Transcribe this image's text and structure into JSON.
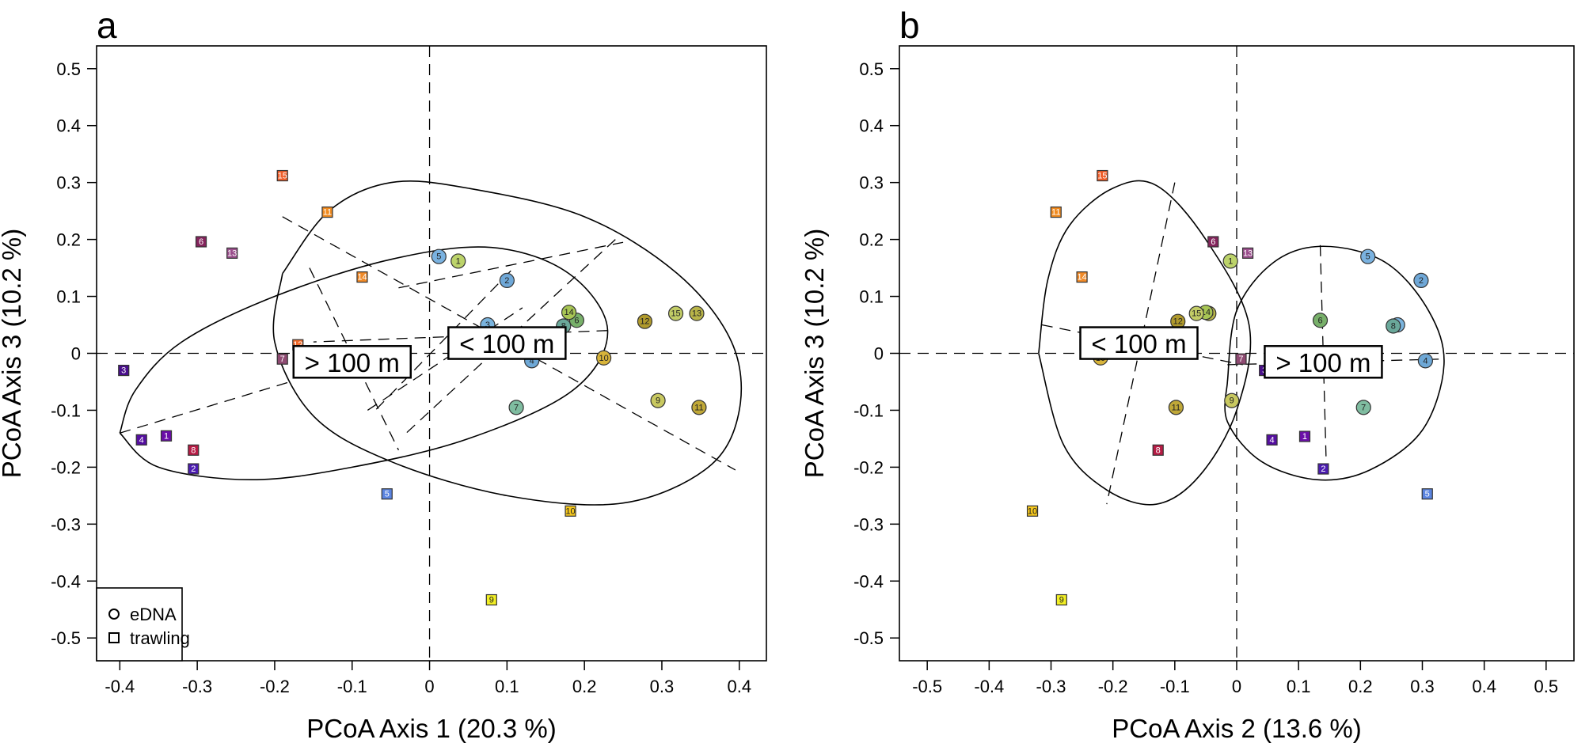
{
  "colors": {
    "s1": "#6a0ea8",
    "s2": "#4b1cb0",
    "s3": "#4a0f8c",
    "s4": "#550fa0",
    "s5": "#5b84e0",
    "s6": "#84245c",
    "s7": "#8f4a72",
    "s8": "#b71c45",
    "s9": "#f2ef24",
    "s10": "#f6c81d",
    "s11": "#ef8a1f",
    "s12": "#f06a2a",
    "s13": "#9a4e8c",
    "s14": "#f08a28",
    "s15": "#ef5e2a",
    "e1": "#bcd36a",
    "e2": "#6fa8d8",
    "e3": "#7ab4de",
    "e4": "#6ea8d6",
    "e5": "#7ab2e0",
    "e6": "#78b06a",
    "e7": "#7fbca0",
    "e8": "#6aa89a",
    "e9": "#c8c860",
    "e10": "#d8b43a",
    "e11": "#c0a838",
    "e12": "#b09a2c",
    "e13": "#b8b448",
    "e14": "#a8c654",
    "e15": "#c2cc66"
  },
  "legend": {
    "items": [
      {
        "shape": "circle",
        "label": "eDNA"
      },
      {
        "shape": "square",
        "label": "trawling"
      }
    ]
  },
  "chart_data": [
    {
      "type": "scatter",
      "panel": "a",
      "xlabel": "PCoA Axis 1 (20.3 %)",
      "ylabel": "PCoA Axis 3 (10.2 %)",
      "xlim": [
        -0.43,
        0.435
      ],
      "ylim": [
        -0.54,
        0.54
      ],
      "xticks": [
        -0.4,
        -0.3,
        -0.2,
        -0.1,
        0,
        0.1,
        0.2,
        0.3,
        0.4
      ],
      "xtick_labels": [
        "-0.4",
        "-0.3",
        "-0.2",
        "-0.1",
        "0",
        "0.1",
        "0.2",
        "0.3",
        "0.4"
      ],
      "yticks": [
        0.5,
        0.4,
        0.3,
        0.2,
        0.1,
        0,
        -0.1,
        -0.2,
        -0.3,
        -0.4,
        -0.5
      ],
      "ytick_labels": [
        "0.5",
        "0.4",
        "0.3",
        "0.2",
        "0.1",
        "0",
        "-0.1",
        "-0.2",
        "-0.3",
        "-0.4",
        "-0.5"
      ],
      "has_legend": true,
      "series": [
        {
          "type": "trawling",
          "points": [
            {
              "id": "1",
              "x": -0.34,
              "y": -0.145
            },
            {
              "id": "2",
              "x": -0.305,
              "y": -0.203
            },
            {
              "id": "3",
              "x": -0.395,
              "y": -0.03
            },
            {
              "id": "4",
              "x": -0.372,
              "y": -0.152
            },
            {
              "id": "5",
              "x": -0.055,
              "y": -0.247
            },
            {
              "id": "6",
              "x": -0.295,
              "y": 0.196
            },
            {
              "id": "7",
              "x": -0.19,
              "y": -0.01
            },
            {
              "id": "8",
              "x": -0.305,
              "y": -0.17
            },
            {
              "id": "9",
              "x": 0.08,
              "y": -0.433
            },
            {
              "id": "10",
              "x": 0.182,
              "y": -0.277
            },
            {
              "id": "11",
              "x": -0.132,
              "y": 0.248
            },
            {
              "id": "12",
              "x": -0.17,
              "y": 0.015
            },
            {
              "id": "13",
              "x": -0.255,
              "y": 0.176
            },
            {
              "id": "14",
              "x": -0.087,
              "y": 0.134
            },
            {
              "id": "15",
              "x": -0.19,
              "y": 0.312
            }
          ]
        },
        {
          "type": "eDNA",
          "points": [
            {
              "id": "1",
              "x": 0.037,
              "y": 0.162
            },
            {
              "id": "2",
              "x": 0.1,
              "y": 0.128
            },
            {
              "id": "3",
              "x": 0.075,
              "y": 0.05
            },
            {
              "id": "4",
              "x": 0.132,
              "y": -0.013
            },
            {
              "id": "5",
              "x": 0.012,
              "y": 0.17
            },
            {
              "id": "6",
              "x": 0.19,
              "y": 0.058
            },
            {
              "id": "7",
              "x": 0.112,
              "y": -0.095
            },
            {
              "id": "8",
              "x": 0.173,
              "y": 0.048
            },
            {
              "id": "9",
              "x": 0.295,
              "y": -0.083
            },
            {
              "id": "10",
              "x": 0.225,
              "y": -0.008
            },
            {
              "id": "11",
              "x": 0.348,
              "y": -0.095
            },
            {
              "id": "12",
              "x": 0.278,
              "y": 0.056
            },
            {
              "id": "13",
              "x": 0.345,
              "y": 0.07
            },
            {
              "id": "14",
              "x": 0.18,
              "y": 0.072
            },
            {
              "id": "15",
              "x": 0.318,
              "y": 0.07
            }
          ]
        }
      ],
      "groups": [
        {
          "label": "> 100 m",
          "label_x": -0.1,
          "label_y": -0.015,
          "center": [
            -0.112,
            -0.011
          ],
          "ellipse_path": [
            [
              -0.4,
              -0.14
            ],
            [
              -0.38,
              -0.065
            ],
            [
              -0.32,
              0.02
            ],
            [
              -0.2,
              0.1
            ],
            [
              -0.05,
              0.165
            ],
            [
              0.08,
              0.186
            ],
            [
              0.18,
              0.14
            ],
            [
              0.23,
              0.04
            ],
            [
              0.185,
              -0.065
            ],
            [
              0.05,
              -0.15
            ],
            [
              -0.1,
              -0.2
            ],
            [
              -0.23,
              -0.222
            ],
            [
              -0.35,
              -0.2
            ],
            [
              -0.4,
              -0.14
            ]
          ],
          "spokes": [
            [
              [
                -0.4,
                -0.14
              ],
              [
                -0.18,
                -0.05
              ]
            ],
            [
              [
                0.23,
                0.04
              ],
              [
                -0.15,
                0.02
              ]
            ],
            [
              [
                -0.155,
                0.15
              ],
              [
                -0.04,
                -0.17
              ]
            ],
            [
              [
                0.105,
                0.145
              ],
              [
                -0.07,
                -0.1
              ]
            ]
          ]
        },
        {
          "label": "< 100 m",
          "label_x": 0.1,
          "label_y": 0.018,
          "center": [
            0.08,
            0.02
          ],
          "ellipse_path": [
            [
              -0.19,
              0.14
            ],
            [
              -0.13,
              0.25
            ],
            [
              -0.05,
              0.3
            ],
            [
              0.05,
              0.29
            ],
            [
              0.2,
              0.24
            ],
            [
              0.32,
              0.14
            ],
            [
              0.39,
              0.02
            ],
            [
              0.4,
              -0.1
            ],
            [
              0.36,
              -0.2
            ],
            [
              0.25,
              -0.263
            ],
            [
              0.1,
              -0.25
            ],
            [
              -0.05,
              -0.19
            ],
            [
              -0.15,
              -0.11
            ],
            [
              -0.2,
              0.02
            ],
            [
              -0.19,
              0.14
            ]
          ],
          "spokes": [
            [
              [
                -0.19,
                0.24
              ],
              [
                0.395,
                -0.205
              ]
            ],
            [
              [
                0.24,
                0.2
              ],
              [
                -0.03,
                -0.14
              ]
            ],
            [
              [
                -0.04,
                0.115
              ],
              [
                0.25,
                0.195
              ]
            ],
            [
              [
                -0.08,
                -0.1
              ],
              [
                0.12,
                0.08
              ]
            ]
          ]
        }
      ]
    },
    {
      "type": "scatter",
      "panel": "b",
      "xlabel": "PCoA Axis 2 (13.6 %)",
      "ylabel": "PCoA Axis 3 (10.2 %)",
      "xlim": [
        -0.545,
        0.545
      ],
      "ylim": [
        -0.54,
        0.54
      ],
      "xticks": [
        -0.5,
        -0.4,
        -0.3,
        -0.2,
        -0.1,
        0,
        0.1,
        0.2,
        0.3,
        0.4,
        0.5
      ],
      "xtick_labels": [
        "-0.5",
        "-0.4",
        "-0.3",
        "-0.2",
        "-0.1",
        "0",
        "0.1",
        "0.2",
        "0.3",
        "0.4",
        "0.5"
      ],
      "yticks": [
        0.5,
        0.4,
        0.3,
        0.2,
        0.1,
        0,
        -0.1,
        -0.2,
        -0.3,
        -0.4,
        -0.5
      ],
      "ytick_labels": [
        "0.5",
        "0.4",
        "0.3",
        "0.2",
        "0.1",
        "0",
        "-0.1",
        "-0.2",
        "-0.3",
        "-0.4",
        "-0.5"
      ],
      "has_legend": false,
      "series": [
        {
          "type": "trawling",
          "points": [
            {
              "id": "1",
              "x": 0.11,
              "y": -0.146
            },
            {
              "id": "2",
              "x": 0.14,
              "y": -0.203
            },
            {
              "id": "3",
              "x": 0.045,
              "y": -0.03
            },
            {
              "id": "4",
              "x": 0.057,
              "y": -0.152
            },
            {
              "id": "5",
              "x": 0.308,
              "y": -0.247
            },
            {
              "id": "6",
              "x": -0.038,
              "y": 0.196
            },
            {
              "id": "7",
              "x": 0.007,
              "y": -0.01
            },
            {
              "id": "8",
              "x": -0.127,
              "y": -0.17
            },
            {
              "id": "9",
              "x": -0.283,
              "y": -0.433
            },
            {
              "id": "10",
              "x": -0.33,
              "y": -0.277
            },
            {
              "id": "11",
              "x": -0.292,
              "y": 0.248
            },
            {
              "id": "12",
              "x": -0.245,
              "y": 0.015
            },
            {
              "id": "13",
              "x": 0.018,
              "y": 0.176
            },
            {
              "id": "14",
              "x": -0.25,
              "y": 0.134
            },
            {
              "id": "15",
              "x": -0.217,
              "y": 0.312
            }
          ]
        },
        {
          "type": "eDNA",
          "points": [
            {
              "id": "1",
              "x": -0.01,
              "y": 0.162
            },
            {
              "id": "2",
              "x": 0.298,
              "y": 0.128
            },
            {
              "id": "3",
              "x": 0.26,
              "y": 0.05
            },
            {
              "id": "4",
              "x": 0.305,
              "y": -0.013
            },
            {
              "id": "5",
              "x": 0.212,
              "y": 0.17
            },
            {
              "id": "6",
              "x": 0.135,
              "y": 0.058
            },
            {
              "id": "7",
              "x": 0.205,
              "y": -0.095
            },
            {
              "id": "8",
              "x": 0.253,
              "y": 0.048
            },
            {
              "id": "9",
              "x": -0.008,
              "y": -0.083
            },
            {
              "id": "10",
              "x": -0.22,
              "y": -0.008
            },
            {
              "id": "11",
              "x": -0.098,
              "y": -0.095
            },
            {
              "id": "12",
              "x": -0.095,
              "y": 0.056
            },
            {
              "id": "13",
              "x": -0.045,
              "y": 0.07
            },
            {
              "id": "14",
              "x": -0.05,
              "y": 0.072
            },
            {
              "id": "15",
              "x": -0.065,
              "y": 0.07
            }
          ]
        }
      ],
      "groups": [
        {
          "label": "< 100 m",
          "label_x": -0.158,
          "label_y": 0.018,
          "center": [
            -0.15,
            0.01
          ],
          "ellipse_path": [
            [
              -0.32,
              0.0
            ],
            [
              -0.305,
              0.13
            ],
            [
              -0.27,
              0.225
            ],
            [
              -0.2,
              0.29
            ],
            [
              -0.13,
              0.295
            ],
            [
              -0.05,
              0.2
            ],
            [
              0.02,
              0.05
            ],
            [
              0.0,
              -0.1
            ],
            [
              -0.06,
              -0.215
            ],
            [
              -0.13,
              -0.265
            ],
            [
              -0.21,
              -0.24
            ],
            [
              -0.28,
              -0.16
            ],
            [
              -0.32,
              0.0
            ]
          ],
          "spokes": [
            [
              [
                -0.1,
                0.3
              ],
              [
                -0.21,
                -0.265
              ]
            ],
            [
              [
                -0.315,
                0.05
              ],
              [
                0.01,
                -0.02
              ]
            ],
            [
              [
                -0.25,
                0.015
              ],
              [
                -0.2,
                0.015
              ]
            ]
          ]
        },
        {
          "label": "> 100 m",
          "label_x": 0.14,
          "label_y": -0.015,
          "center": [
            0.12,
            -0.01
          ],
          "ellipse_path": [
            [
              -0.015,
              -0.05
            ],
            [
              0.0,
              0.075
            ],
            [
              0.06,
              0.16
            ],
            [
              0.14,
              0.188
            ],
            [
              0.24,
              0.16
            ],
            [
              0.31,
              0.075
            ],
            [
              0.335,
              -0.02
            ],
            [
              0.3,
              -0.135
            ],
            [
              0.215,
              -0.205
            ],
            [
              0.13,
              -0.222
            ],
            [
              0.04,
              -0.19
            ],
            [
              -0.015,
              -0.12
            ],
            [
              -0.015,
              -0.05
            ]
          ],
          "spokes": [
            [
              [
                0.135,
                0.19
              ],
              [
                0.145,
                -0.205
              ]
            ],
            [
              [
                -0.015,
                -0.02
              ],
              [
                0.335,
                -0.01
              ]
            ],
            [
              [
                0.075,
                -0.03
              ],
              [
                0.19,
                -0.01
              ]
            ]
          ]
        }
      ]
    }
  ]
}
